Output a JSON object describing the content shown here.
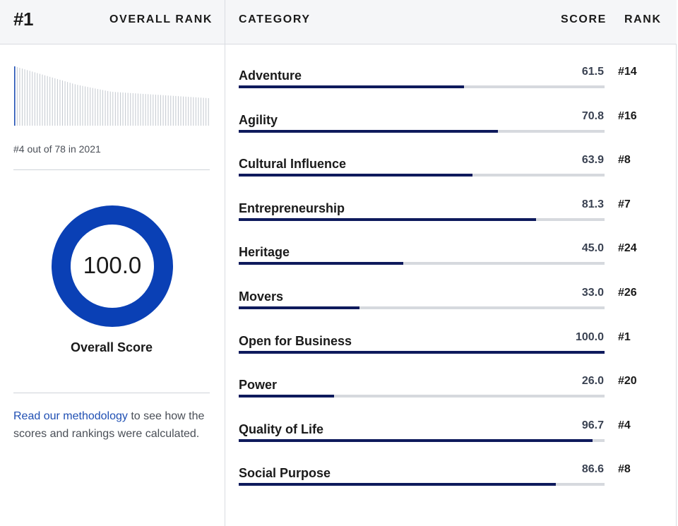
{
  "header": {
    "rank_number": "#1",
    "overall_rank_label": "OVERALL RANK",
    "category_label": "CATEGORY",
    "score_label": "SCORE",
    "rank_label": "RANK"
  },
  "rank_history": {
    "text": "#4 out of 78 in 2021",
    "highlight_color": "#1f4fb3",
    "bar_color": "#c3c8cf"
  },
  "overall": {
    "score": "100.0",
    "score_value": 100,
    "label": "Overall Score",
    "ring_color": "#0a40b5"
  },
  "methodology": {
    "link_text": "Read our methodology",
    "rest_text": " to see how the scores and rankings were calculated."
  },
  "categories": [
    {
      "name": "Adventure",
      "score": "61.5",
      "rank": "#14"
    },
    {
      "name": "Agility",
      "score": "70.8",
      "rank": "#16"
    },
    {
      "name": "Cultural Influence",
      "score": "63.9",
      "rank": "#8"
    },
    {
      "name": "Entrepreneurship",
      "score": "81.3",
      "rank": "#7"
    },
    {
      "name": "Heritage",
      "score": "45.0",
      "rank": "#24"
    },
    {
      "name": "Movers",
      "score": "33.0",
      "rank": "#26"
    },
    {
      "name": "Open for Business",
      "score": "100.0",
      "rank": "#1"
    },
    {
      "name": "Power",
      "score": "26.0",
      "rank": "#20"
    },
    {
      "name": "Quality of Life",
      "score": "96.7",
      "rank": "#4"
    },
    {
      "name": "Social Purpose",
      "score": "86.6",
      "rank": "#8"
    }
  ],
  "colors": {
    "bar_fill": "#0e1a5c",
    "bar_track": "#d6d9de",
    "header_bg": "#f5f6f8"
  }
}
